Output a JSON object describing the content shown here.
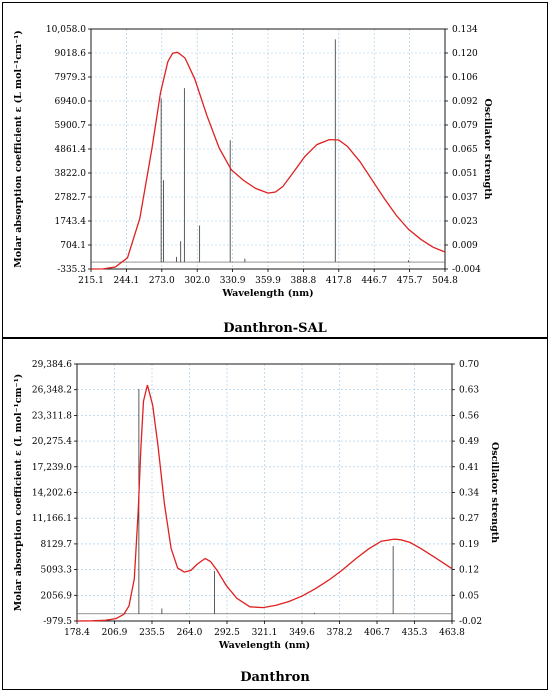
{
  "chart_data": [
    {
      "type": "line",
      "caption": "Danthron-SAL",
      "xlabel": "Wavelength (nm)",
      "ylabel": "Molar absorption coefficient  ε (L mol⁻¹cm⁻¹)",
      "y2label": "Oscillator strength",
      "xlim": [
        215.1,
        504.8
      ],
      "ylim": [
        -335.3,
        10058.0
      ],
      "y2lim": [
        -0.004,
        0.134
      ],
      "x_ticks": [
        "215.1",
        "244.1",
        "273.0",
        "302.0",
        "330.9",
        "359.9",
        "388.8",
        "417.8",
        "446.7",
        "475.7",
        "504.8"
      ],
      "y_ticks": [
        "-335.3",
        "704.1",
        "1743.4",
        "2782.7",
        "3822.0",
        "4861.4",
        "5900.7",
        "6940.0",
        "7979.3",
        "9018.6",
        "10,058.0"
      ],
      "y2_ticks": [
        "-0.004",
        "0.009",
        "0.023",
        "0.037",
        "0.051",
        "0.065",
        "0.079",
        "0.092",
        "0.106",
        "0.120",
        "0.134"
      ],
      "grid": true,
      "series": [
        {
          "color": "#e02020",
          "x": [
            215.1,
            225,
            235,
            245,
            255,
            265,
            272,
            278,
            282,
            286,
            292,
            300,
            310,
            320,
            330,
            340,
            350,
            360,
            366,
            372,
            380,
            390,
            400,
            410,
            417.8,
            425,
            435,
            445,
            455,
            465,
            475,
            485,
            495,
            504.8
          ],
          "y": [
            -335,
            -330,
            -250,
            150,
            1850,
            4900,
            7300,
            8650,
            9010,
            9050,
            8800,
            7900,
            6300,
            4900,
            3950,
            3500,
            3150,
            2950,
            3000,
            3230,
            3800,
            4530,
            5050,
            5270,
            5250,
            4970,
            4330,
            3530,
            2730,
            1980,
            1380,
            950,
            610,
            400
          ]
        }
      ],
      "sticks": [
        {
          "x": 272.5,
          "f": 0.094
        },
        {
          "x": 274.5,
          "f": 0.047
        },
        {
          "x": 285,
          "f": 0.003
        },
        {
          "x": 288.5,
          "f": 0.012
        },
        {
          "x": 291.5,
          "f": 0.1
        },
        {
          "x": 304,
          "f": 0.021
        },
        {
          "x": 329,
          "f": 0.07
        },
        {
          "x": 341,
          "f": 0.002
        },
        {
          "x": 415,
          "f": 0.128
        },
        {
          "x": 475,
          "f": 0.001
        }
      ]
    },
    {
      "type": "line",
      "caption": "Danthron",
      "xlabel": "Wavelength (nm)",
      "ylabel": "Molar absorption coefficient  ε (L mol⁻¹cm⁻¹)",
      "y2label": "Oscillator strength",
      "xlim": [
        178.4,
        463.8
      ],
      "ylim": [
        -979.5,
        29384.6
      ],
      "y2lim": [
        -0.02,
        0.7
      ],
      "x_ticks": [
        "178.4",
        "206.9",
        "235.5",
        "264.0",
        "292.5",
        "321.1",
        "349.6",
        "378.2",
        "406.7",
        "435.3",
        "463.8"
      ],
      "y_ticks": [
        "-979.5",
        "2056.9",
        "5093.3",
        "8129.7",
        "11,166.1",
        "14,202.6",
        "17,239.0",
        "20,275.4",
        "23,311.8",
        "26,348.2",
        "29,384.6"
      ],
      "y2_ticks": [
        "-0.02",
        "0.05",
        "0.12",
        "0.19",
        "0.27",
        "0.34",
        "0.41",
        "0.49",
        "0.56",
        "0.63",
        "0.70"
      ],
      "grid": true,
      "series": [
        {
          "color": "#e02020",
          "x": [
            178.4,
            190,
            200,
            208,
            214,
            218,
            222,
            225,
            227,
            229,
            232,
            236,
            240,
            245,
            250,
            255,
            260,
            265,
            270,
            276,
            280,
            285,
            292,
            300,
            310,
            320,
            330,
            340,
            350,
            360,
            370,
            380,
            390,
            400,
            410,
            420,
            425,
            432,
            440,
            450,
            463.8
          ],
          "y": [
            -979,
            -960,
            -900,
            -700,
            -200,
            800,
            4000,
            12000,
            19500,
            25000,
            26900,
            24500,
            19800,
            12800,
            7600,
            5300,
            4800,
            5000,
            5750,
            6400,
            6050,
            5000,
            3200,
            1700,
            700,
            600,
            870,
            1340,
            2000,
            2850,
            3850,
            5000,
            6300,
            7500,
            8450,
            8700,
            8620,
            8300,
            7600,
            6600,
            5200
          ]
        }
      ],
      "sticks": [
        {
          "x": 215,
          "f": 0.005
        },
        {
          "x": 225.5,
          "f": 0.63
        },
        {
          "x": 243,
          "f": 0.015
        },
        {
          "x": 262,
          "f": 0.002
        },
        {
          "x": 283,
          "f": 0.12
        },
        {
          "x": 359,
          "f": 0.003
        },
        {
          "x": 419,
          "f": 0.19
        }
      ]
    }
  ]
}
